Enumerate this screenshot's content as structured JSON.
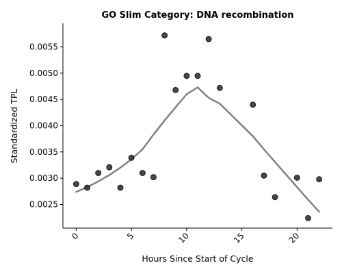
{
  "chart_data": {
    "type": "scatter",
    "title": "GO Slim Category: DNA recombination",
    "xlabel": "Hours Since Start of Cycle",
    "ylabel": "Standardized TPL",
    "xlim": [
      -1.2,
      23.2
    ],
    "ylim": [
      0.00205,
      0.00595
    ],
    "x_ticks": [
      0,
      5,
      10,
      15,
      20
    ],
    "x_tick_labels": [
      "0",
      "5",
      "10",
      "15",
      "20"
    ],
    "x_tick_rotation_deg": 45,
    "y_ticks": [
      0.0025,
      0.003,
      0.0035,
      0.004,
      0.0045,
      0.005,
      0.0055
    ],
    "y_tick_labels": [
      "0.0025",
      "0.0030",
      "0.0035",
      "0.0040",
      "0.0045",
      "0.0050",
      "0.0055"
    ],
    "grid": false,
    "spines": [
      "left",
      "bottom"
    ],
    "series": [
      {
        "kind": "scatter",
        "color": "#333333",
        "x": [
          0,
          1,
          2,
          3,
          4,
          5,
          6,
          7,
          8,
          9,
          10,
          11,
          12,
          13,
          16,
          17,
          18,
          20,
          21,
          22
        ],
        "y": [
          0.00289,
          0.00282,
          0.0031,
          0.00321,
          0.00282,
          0.00339,
          0.0031,
          0.00302,
          0.00572,
          0.00468,
          0.00495,
          0.00495,
          0.00565,
          0.00472,
          0.0044,
          0.00305,
          0.00264,
          0.00301,
          0.00224,
          0.00298
        ]
      },
      {
        "kind": "line",
        "color": "#808080",
        "x": [
          0,
          1,
          2,
          3,
          4,
          5,
          6,
          7,
          8,
          9,
          10,
          11,
          12,
          13,
          16,
          17,
          18,
          20,
          21,
          22
        ],
        "y": [
          0.00274,
          0.00283,
          0.00294,
          0.00306,
          0.0032,
          0.00336,
          0.00355,
          0.00383,
          0.0041,
          0.00435,
          0.0046,
          0.00473,
          0.00453,
          0.00442,
          0.0038,
          0.00355,
          0.00331,
          0.00283,
          0.00259,
          0.00236
        ]
      }
    ]
  }
}
